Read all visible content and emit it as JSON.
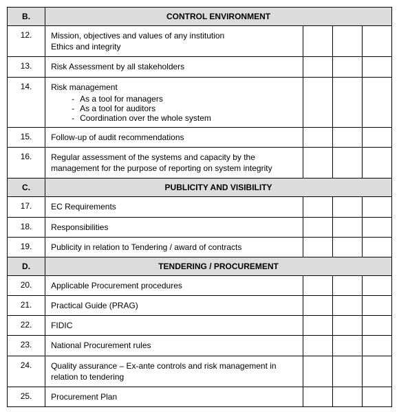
{
  "colors": {
    "header_bg": "#dcdcdc",
    "border": "#000000",
    "text": "#000000",
    "page_bg": "#ffffff"
  },
  "fonts": {
    "family": "Arial, sans-serif",
    "size_pt": 12
  },
  "sections": [
    {
      "letter": "B.",
      "title": "CONTROL ENVIRONMENT",
      "rows": [
        {
          "num": "12.",
          "lines": [
            "Mission, objectives and values of any institution",
            "Ethics and integrity"
          ]
        },
        {
          "num": "13.",
          "lines": [
            "Risk Assessment by all stakeholders"
          ]
        },
        {
          "num": "14.",
          "lines": [
            "Risk management"
          ],
          "bullets": [
            "As a tool for managers",
            "As a tool for auditors",
            "Coordination over the whole system"
          ]
        },
        {
          "num": "15.",
          "lines": [
            "Follow-up of audit recommendations"
          ]
        },
        {
          "num": "16.",
          "lines": [
            "Regular assessment of the systems and capacity by the management for the purpose of reporting on system integrity"
          ]
        }
      ]
    },
    {
      "letter": "C.",
      "title": "PUBLICITY AND VISIBILITY",
      "rows": [
        {
          "num": "17.",
          "lines": [
            "EC Requirements"
          ]
        },
        {
          "num": "18.",
          "lines": [
            "Responsibilities"
          ]
        },
        {
          "num": "19.",
          "lines": [
            "Publicity in relation to Tendering / award of contracts"
          ]
        }
      ]
    },
    {
      "letter": "D.",
      "title": "TENDERING / PROCUREMENT",
      "rows": [
        {
          "num": "20.",
          "lines": [
            "Applicable Procurement procedures"
          ]
        },
        {
          "num": "21.",
          "lines": [
            "Practical Guide (PRAG)"
          ]
        },
        {
          "num": "22.",
          "lines": [
            "FIDIC"
          ]
        },
        {
          "num": "23.",
          "lines": [
            "National Procurement rules"
          ]
        },
        {
          "num": "24.",
          "lines": [
            "Quality assurance – Ex-ante controls and risk management in relation to tendering"
          ]
        },
        {
          "num": "25.",
          "lines": [
            "Procurement Plan"
          ]
        }
      ]
    }
  ]
}
